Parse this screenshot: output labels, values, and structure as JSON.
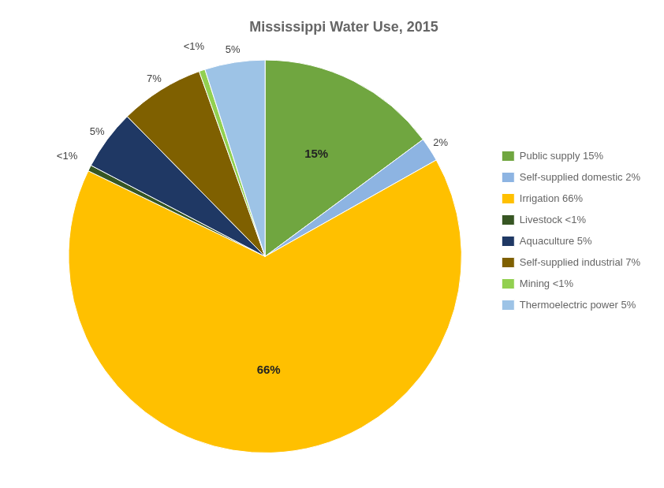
{
  "chart_data": {
    "type": "pie",
    "title": "Mississippi Water Use, 2015",
    "categories": [
      "Public supply 15%",
      "Self-supplied domestic 2%",
      "Irrigation 66%",
      "Livestock <1%",
      "Aquaculture 5%",
      "Self-supplied industrial 7%",
      "Mining <1%",
      "Thermoelectric power 5%"
    ],
    "values": [
      15,
      2,
      66,
      0.5,
      5,
      7,
      0.5,
      5
    ],
    "value_labels": [
      "15%",
      "2%",
      "66%",
      "<1%",
      "5%",
      "7%",
      "<1%",
      "5%"
    ],
    "colors": [
      "#70a640",
      "#8db4e2",
      "#ffc000",
      "#375623",
      "#1f3864",
      "#7f6000",
      "#92d050",
      "#9dc3e6"
    ],
    "data_labels": true,
    "legend": "right"
  }
}
